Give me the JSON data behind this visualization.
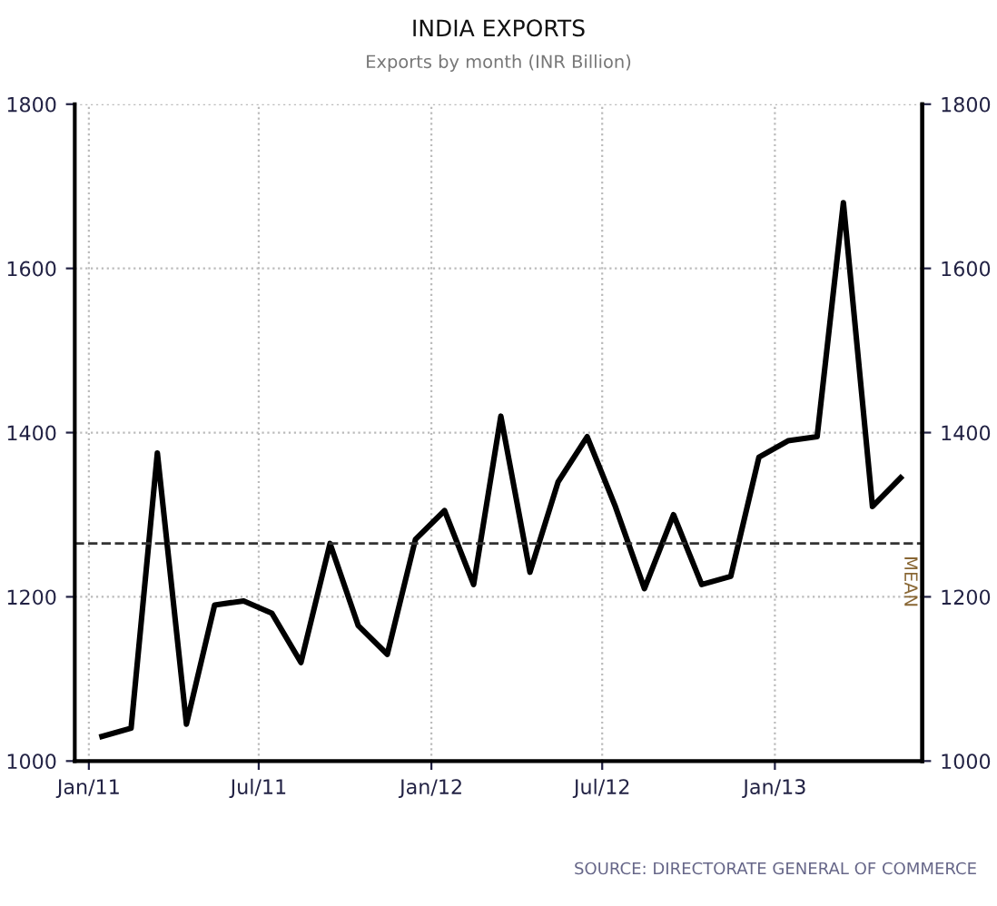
{
  "chart_data": {
    "type": "line",
    "title": "INDIA EXPORTS",
    "subtitle": "Exports by month (INR Billion)",
    "x": [
      "2011-01-15",
      "2011-02-15",
      "2011-03-15",
      "2011-04-15",
      "2011-05-15",
      "2011-06-15",
      "2011-07-15",
      "2011-08-15",
      "2011-09-15",
      "2011-10-15",
      "2011-11-15",
      "2011-12-15",
      "2012-01-15",
      "2012-02-15",
      "2012-03-15",
      "2012-04-15",
      "2012-05-15",
      "2012-06-15",
      "2012-07-15",
      "2012-08-15",
      "2012-09-15",
      "2012-10-15",
      "2012-11-15",
      "2012-12-15",
      "2013-01-15",
      "2013-02-15",
      "2013-03-15",
      "2013-04-15",
      "2013-05-15"
    ],
    "series": [
      {
        "color": "#000000",
        "values": [
          1030,
          1040,
          1375,
          1045,
          1190,
          1195,
          1180,
          1120,
          1265,
          1165,
          1130,
          1270,
          1305,
          1215,
          1420,
          1230,
          1340,
          1395,
          1310,
          1210,
          1300,
          1215,
          1225,
          1370,
          1390,
          1395,
          1680,
          1310,
          1345
        ]
      }
    ],
    "xlim": [
      "2010-12-17",
      "2013-06-07"
    ],
    "xticks": [
      {
        "value": "2011-01-01",
        "label": "Jan/11"
      },
      {
        "value": "2011-07-01",
        "label": "Jul/11"
      },
      {
        "value": "2012-01-01",
        "label": "Jan/12"
      },
      {
        "value": "2012-07-01",
        "label": "Jul/12"
      },
      {
        "value": "2013-01-01",
        "label": "Jan/13"
      }
    ],
    "ylim": [
      1000,
      1800
    ],
    "yticks": [
      1000,
      1200,
      1400,
      1600,
      1800
    ],
    "y2lim": [
      1000,
      1800
    ],
    "y2ticks": [
      1000,
      1200,
      1400,
      1600,
      1800
    ],
    "ref_lines": [
      {
        "axis": "y",
        "value": 1265,
        "label": "MEAN",
        "color": "#333333",
        "line_style": "dashed"
      }
    ],
    "annotations": [
      "SOURCE: DIRECTORATE GENERAL OF COMMERCE"
    ],
    "grid": true,
    "legend": false,
    "marker": "none",
    "line_style": "solid"
  }
}
